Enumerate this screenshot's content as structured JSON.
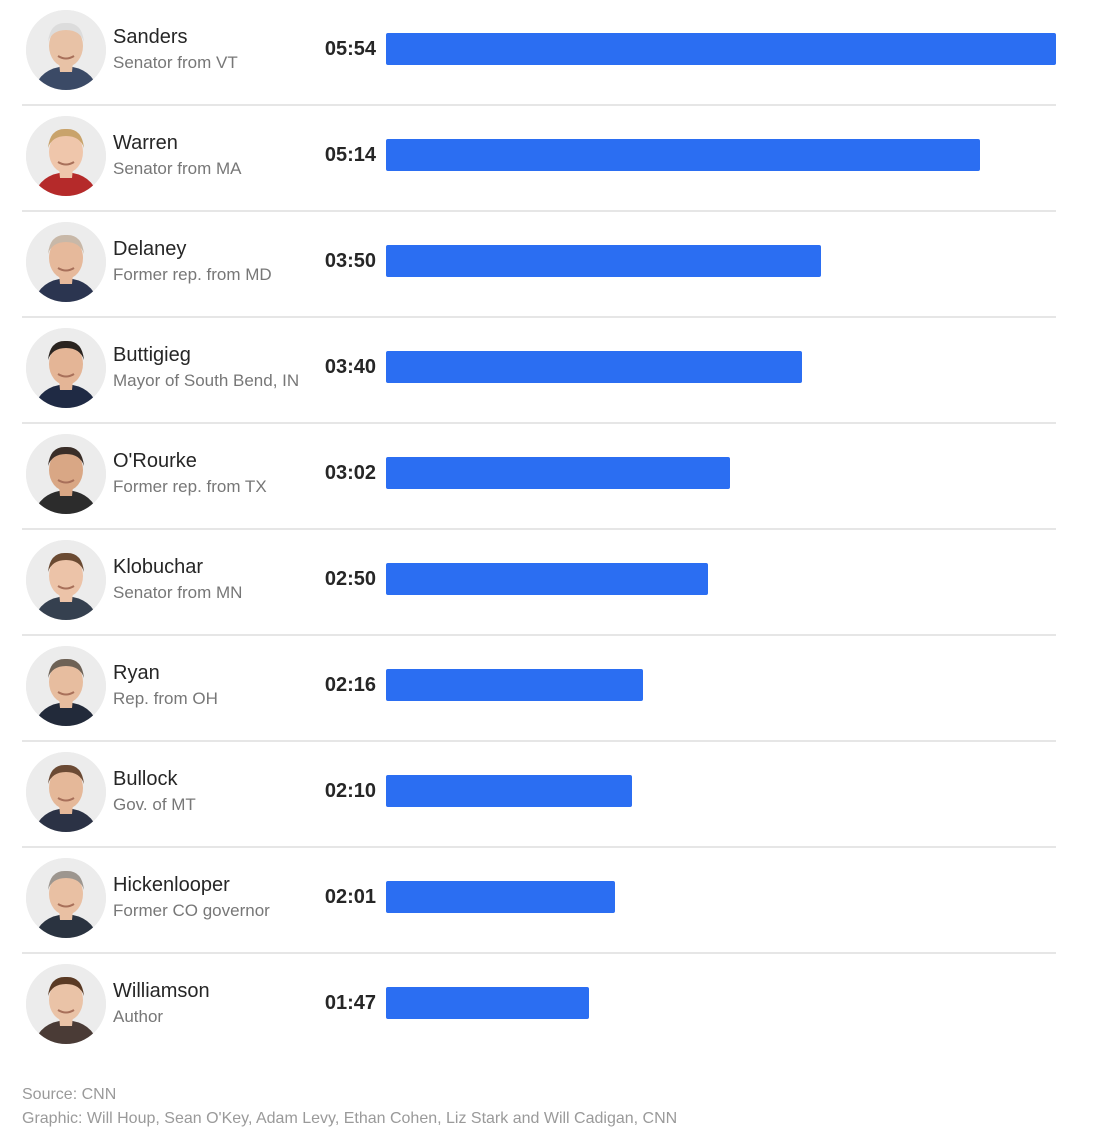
{
  "colors": {
    "bar": "#2b6ef2"
  },
  "chart_data": {
    "type": "bar",
    "orientation": "horizontal",
    "unit": "minutes:seconds",
    "categories": [
      "Sanders",
      "Warren",
      "Delaney",
      "Buttigieg",
      "O'Rourke",
      "Klobuchar",
      "Ryan",
      "Bullock",
      "Hickenlooper",
      "Williamson"
    ],
    "rows": [
      {
        "name": "Sanders",
        "desc": "Senator from VT",
        "time": "05:54",
        "seconds": 354,
        "avatar": "person-photo-icon"
      },
      {
        "name": "Warren",
        "desc": "Senator from MA",
        "time": "05:14",
        "seconds": 314,
        "avatar": "person-photo-icon"
      },
      {
        "name": "Delaney",
        "desc": "Former rep. from MD",
        "time": "03:50",
        "seconds": 230,
        "avatar": "person-photo-icon"
      },
      {
        "name": "Buttigieg",
        "desc": "Mayor of South Bend, IN",
        "time": "03:40",
        "seconds": 220,
        "avatar": "person-photo-icon"
      },
      {
        "name": "O'Rourke",
        "desc": "Former rep. from TX",
        "time": "03:02",
        "seconds": 182,
        "avatar": "person-photo-icon"
      },
      {
        "name": "Klobuchar",
        "desc": "Senator from MN",
        "time": "02:50",
        "seconds": 170,
        "avatar": "person-photo-icon"
      },
      {
        "name": "Ryan",
        "desc": "Rep. from OH",
        "time": "02:16",
        "seconds": 136,
        "avatar": "person-photo-icon"
      },
      {
        "name": "Bullock",
        "desc": "Gov. of MT",
        "time": "02:10",
        "seconds": 130,
        "avatar": "person-photo-icon"
      },
      {
        "name": "Hickenlooper",
        "desc": "Former CO governor",
        "time": "02:01",
        "seconds": 121,
        "avatar": "person-photo-icon"
      },
      {
        "name": "Williamson",
        "desc": "Author",
        "time": "01:47",
        "seconds": 107,
        "avatar": "person-photo-icon"
      }
    ],
    "xlim": [
      0,
      354
    ]
  },
  "footer": {
    "source": "Source: CNN",
    "credit": "Graphic: Will Houp, Sean O'Key, Adam Levy, Ethan Cohen, Liz Stark and Will Cadigan, CNN"
  }
}
